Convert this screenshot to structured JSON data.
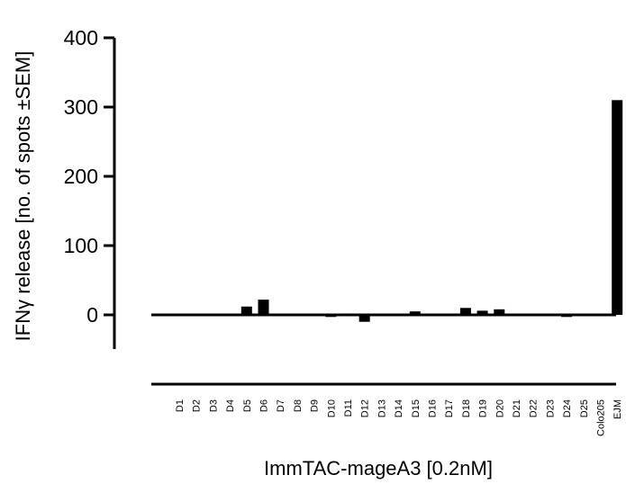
{
  "chart_data": {
    "type": "bar",
    "title": "",
    "xlabel": "ImmTAC-mageA3 [0.2nM]",
    "ylabel": "IFNγ release [no. of spots ±SEM]",
    "ylim": [
      -50,
      400
    ],
    "yticks": [
      0,
      100,
      200,
      300,
      400
    ],
    "grid": false,
    "legend": "none",
    "bar_color": "#000000",
    "categories": [
      "D1",
      "D2",
      "D3",
      "D4",
      "D5",
      "D6",
      "D7",
      "D8",
      "D9",
      "D10",
      "D11",
      "D12",
      "D13",
      "D14",
      "D15",
      "D16",
      "D17",
      "D18",
      "D19",
      "D20",
      "D21",
      "D22",
      "D23",
      "D24",
      "D25",
      "Colo205",
      "EJM"
    ],
    "values": [
      0,
      0,
      0,
      0,
      12,
      22,
      0,
      0,
      0,
      -3,
      2,
      -10,
      0,
      0,
      5,
      0,
      0,
      10,
      6,
      8,
      0,
      0,
      0,
      -3,
      0,
      0,
      310
    ]
  }
}
